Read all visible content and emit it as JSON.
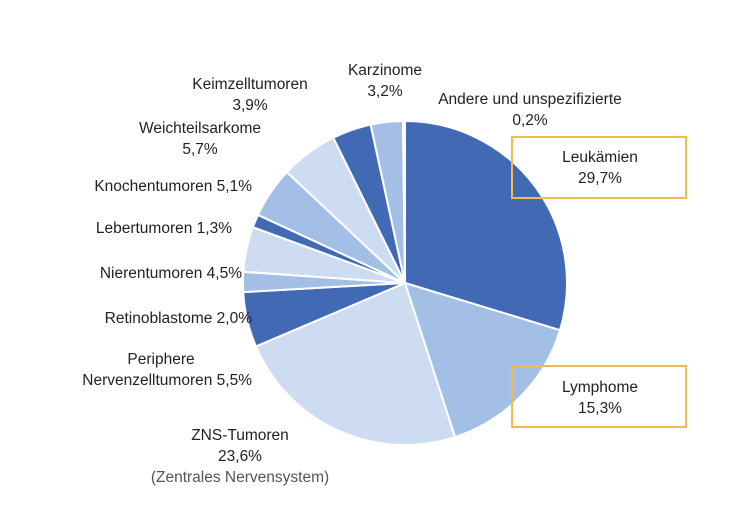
{
  "chart_data": {
    "type": "pie",
    "title": "",
    "slices": [
      {
        "name": "Leukämien",
        "value": 29.7,
        "label": [
          "Leukämien",
          "29,7%"
        ],
        "color": "#4169b4",
        "highlight": true
      },
      {
        "name": "Lymphome",
        "value": 15.3,
        "label": [
          "Lymphome",
          "15,3%"
        ],
        "color": "#a3bfe5",
        "highlight": true
      },
      {
        "name": "ZNS-Tumoren",
        "value": 23.6,
        "label": [
          "ZNS-Tumoren",
          "23,6%",
          "(Zentrales Nervensystem)"
        ],
        "color": "#cddcf1"
      },
      {
        "name": "Periphere Nervenzelltumoren",
        "value": 5.5,
        "label": [
          "Periphere",
          "Nervenzelltumoren 5,5%"
        ],
        "color": "#4169b4"
      },
      {
        "name": "Retinoblastome",
        "value": 2.0,
        "label": [
          "Retinoblastome 2,0%"
        ],
        "color": "#a3bfe5"
      },
      {
        "name": "Nierentumoren",
        "value": 4.5,
        "label": [
          "Nierentumoren 4,5%"
        ],
        "color": "#cddcf1"
      },
      {
        "name": "Lebertumoren",
        "value": 1.3,
        "label": [
          "Lebertumoren 1,3%"
        ],
        "color": "#4169b4"
      },
      {
        "name": "Knochentumoren",
        "value": 5.1,
        "label": [
          "Knochentumoren 5,1%"
        ],
        "color": "#a3bfe5"
      },
      {
        "name": "Weichteilsarkome",
        "value": 5.7,
        "label": [
          "Weichteilsarkome",
          "5,7%"
        ],
        "color": "#cddcf1"
      },
      {
        "name": "Keimzelltumoren",
        "value": 3.9,
        "label": [
          "Keimzelltumoren",
          "3,9%"
        ],
        "color": "#4169b4"
      },
      {
        "name": "Karzinome",
        "value": 3.2,
        "label": [
          "Karzinome",
          "3,2%"
        ],
        "color": "#a3bfe5"
      },
      {
        "name": "Andere und unspezifizierte",
        "value": 0.2,
        "label": [
          "Andere und unspezifizierte",
          "0,2%"
        ],
        "color": "#cddcf1"
      }
    ],
    "highlight_color": "#f6b94a"
  }
}
